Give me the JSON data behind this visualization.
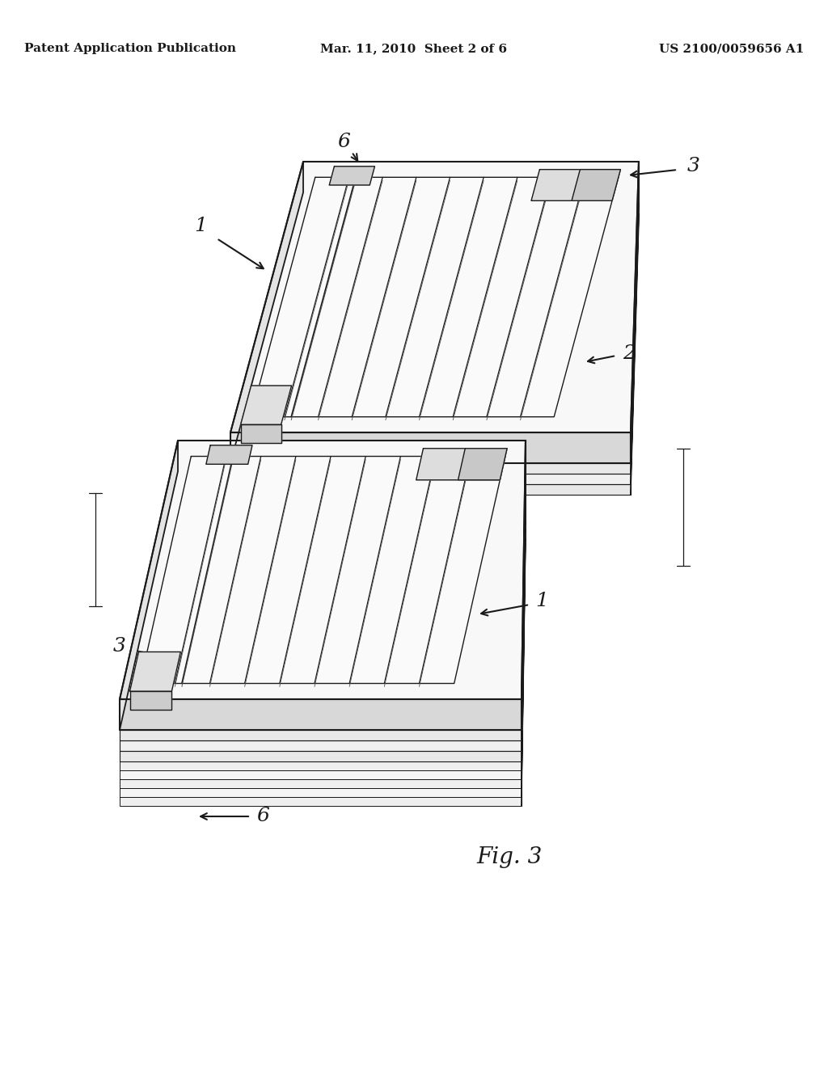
{
  "bg_color": "#ffffff",
  "line_color": "#1a1a1a",
  "header_left": "Patent Application Publication",
  "header_center": "Mar. 11, 2010  Sheet 2 of 6",
  "header_right": "US 2100/0059656 A1",
  "header_fontsize": 11,
  "fig_label": "Fig. 3",
  "fig_label_fontsize": 20
}
